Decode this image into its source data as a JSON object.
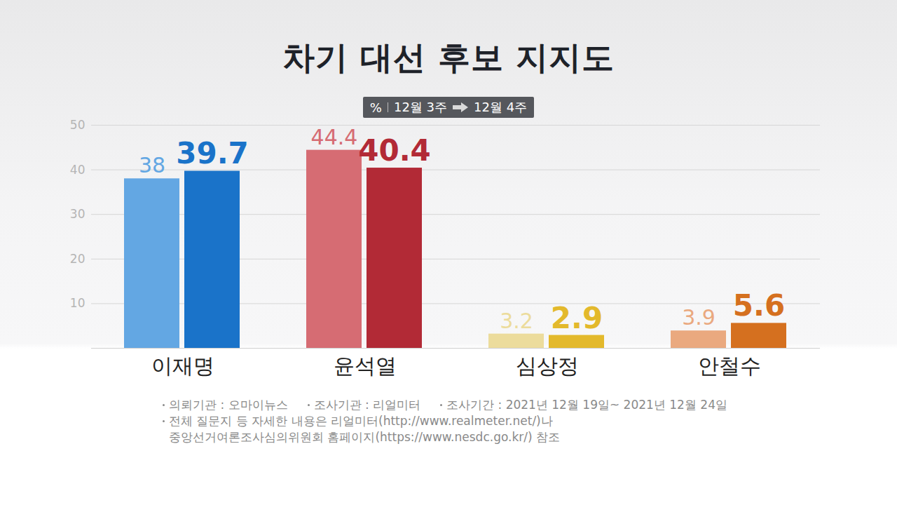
{
  "chart_data": {
    "type": "bar",
    "title": "차기 대선 후보 지지도",
    "y_label": "%",
    "categories": [
      "이재명",
      "윤석열",
      "심상정",
      "안철수"
    ],
    "series": [
      {
        "name": "12월 3주",
        "values": [
          38,
          44.4,
          3.2,
          3.9
        ],
        "colors": [
          "#63a7e3",
          "#d66c73",
          "#ecdc9c",
          "#eaa97f"
        ]
      },
      {
        "name": "12월 4주",
        "values": [
          39.7,
          40.4,
          2.9,
          5.6
        ],
        "colors": [
          "#1a73c9",
          "#b22a36",
          "#e3b92c",
          "#d5701f"
        ]
      }
    ],
    "ylim": [
      0,
      50
    ],
    "yticks": [
      10,
      20,
      30,
      40,
      50
    ],
    "grid": true,
    "legend": "top",
    "data_labels": true,
    "notes": [
      [
        "의뢰기관 : 오마이뉴스",
        "조사기관 : 리얼미터",
        "조사기간 : 2021년 12월 19일~ 2021년 12월 24일"
      ],
      [
        "전체 질문지 등 자세한 내용은 리얼미터(http://www.realmeter.net/)나",
        "중앙선거여론조사심의위원회 홈페이지(https://www.nesdc.go.kr/) 참조"
      ]
    ]
  }
}
